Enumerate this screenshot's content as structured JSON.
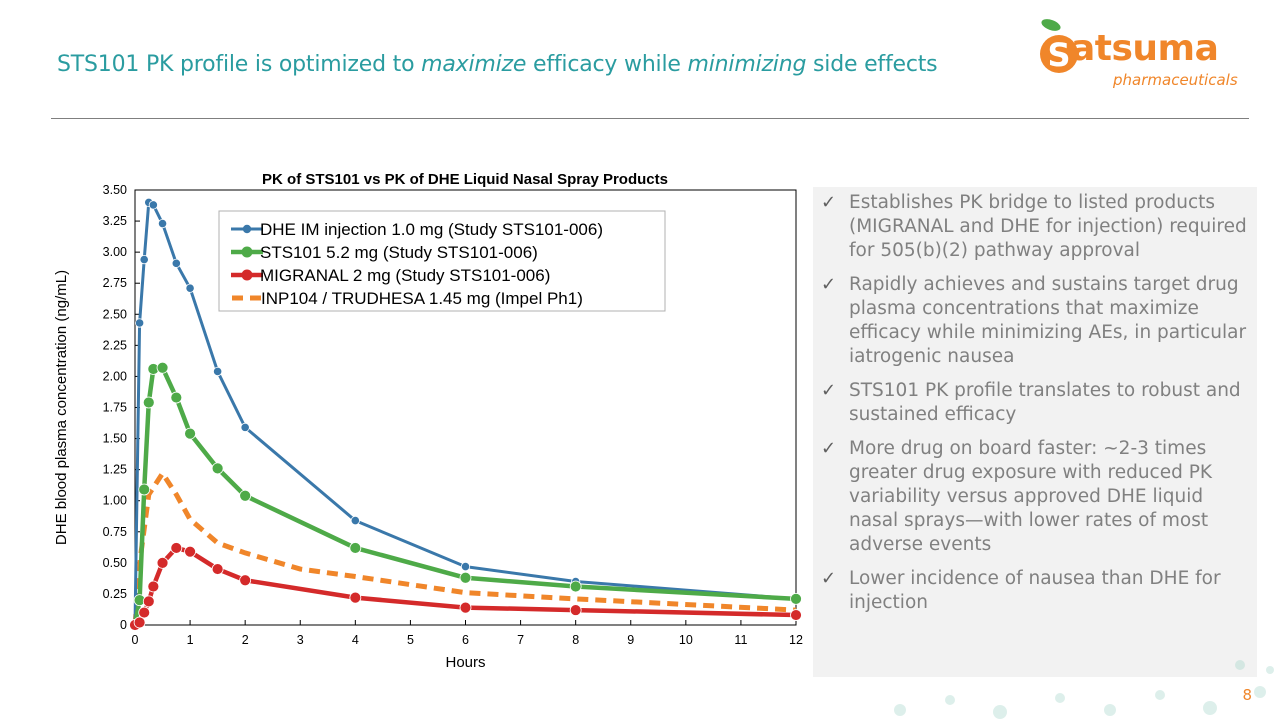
{
  "slide": {
    "title_pre": "STS101 PK profile is optimized to ",
    "title_em1": "maximize",
    "title_mid": " efficacy while ",
    "title_em2": "minimizing",
    "title_post": " side effects",
    "page_number": "8"
  },
  "logo": {
    "word": "atsuma",
    "sub": "pharmaceuticals"
  },
  "bullets": [
    "Establishes PK bridge to listed products (MIGRANAL and DHE for injection) required for 505(b)(2) pathway approval",
    "Rapidly achieves and sustains target drug plasma concentrations that maximize efficacy while minimizing AEs, in particular iatrogenic nausea",
    "STS101 PK profile translates to robust and sustained efficacy",
    "More drug on board faster:  ~2-3 times greater drug exposure with reduced PK variability versus approved DHE liquid nasal sprays—with lower rates of most adverse events",
    "Lower incidence of nausea than DHE for injection"
  ],
  "check_glyph": "✓",
  "chart_data": {
    "type": "line",
    "title": "PK of STS101 vs PK of DHE Liquid Nasal Spray Products",
    "xlabel": "Hours",
    "ylabel": "DHE blood plasma concentration (ng/mL)",
    "xlim": [
      0,
      12
    ],
    "ylim": [
      0,
      3.5
    ],
    "x_ticks": [
      0,
      1,
      2,
      3,
      4,
      5,
      6,
      7,
      8,
      9,
      10,
      11,
      12
    ],
    "y_ticks": [
      0,
      0.25,
      0.5,
      0.75,
      1.0,
      1.25,
      1.5,
      1.75,
      2.0,
      2.25,
      2.5,
      2.75,
      3.0,
      3.25,
      3.5
    ],
    "y_tick_labels": [
      "0",
      "0.25",
      "0.50",
      "0.75",
      "1.00",
      "1.25",
      "1.50",
      "1.75",
      "2.00",
      "2.25",
      "2.50",
      "2.75",
      "3.00",
      "3.25",
      "3.50"
    ],
    "legend_position": "top-center",
    "series": [
      {
        "name": "DHE IM injection 1.0 mg (Study STS101-006)",
        "color": "#3a78aa",
        "style": "solid-markers",
        "x": [
          0,
          0.0833,
          0.167,
          0.25,
          0.333,
          0.5,
          0.75,
          1,
          1.5,
          2,
          4,
          6,
          8,
          12
        ],
        "y": [
          0,
          2.43,
          2.94,
          3.4,
          3.38,
          3.23,
          2.91,
          2.71,
          2.04,
          1.59,
          0.84,
          0.47,
          0.35,
          0.21
        ]
      },
      {
        "name": "STS101 5.2 mg (Study STS101-006)",
        "color": "#4eaa48",
        "style": "solid-markers",
        "x": [
          0,
          0.0833,
          0.167,
          0.25,
          0.333,
          0.5,
          0.75,
          1,
          1.5,
          2,
          4,
          6,
          8,
          12
        ],
        "y": [
          0,
          0.2,
          1.09,
          1.79,
          2.06,
          2.07,
          1.83,
          1.54,
          1.26,
          1.04,
          0.62,
          0.38,
          0.31,
          0.21
        ]
      },
      {
        "name": "MIGRANAL 2 mg (Study STS101-006)",
        "color": "#d42a2a",
        "style": "solid-markers",
        "x": [
          0,
          0.0833,
          0.167,
          0.25,
          0.333,
          0.5,
          0.75,
          1,
          1.5,
          2,
          4,
          6,
          8,
          12
        ],
        "y": [
          0,
          0.02,
          0.1,
          0.19,
          0.31,
          0.5,
          0.62,
          0.59,
          0.45,
          0.36,
          0.22,
          0.14,
          0.12,
          0.08
        ]
      },
      {
        "name": "INP104 / TRUDHESA 1.45 mg (Impel Ph1)",
        "color": "#f0862a",
        "style": "dashed",
        "x": [
          0,
          0.1,
          0.25,
          0.5,
          0.75,
          1,
          1.5,
          2,
          3,
          4,
          6,
          8,
          12
        ],
        "y": [
          0,
          0.55,
          1.05,
          1.22,
          1.05,
          0.85,
          0.66,
          0.58,
          0.45,
          0.39,
          0.26,
          0.21,
          0.12
        ]
      }
    ]
  }
}
